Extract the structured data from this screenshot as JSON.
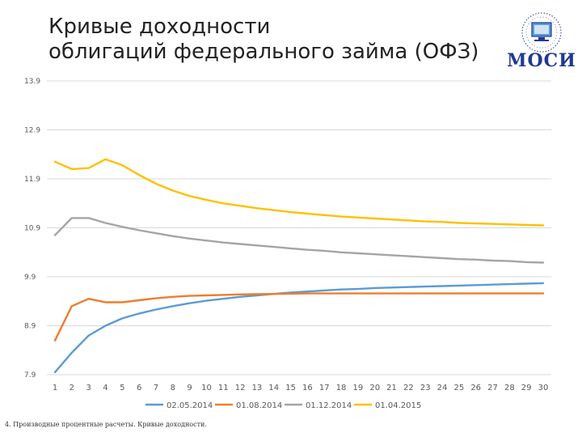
{
  "title_lines": [
    "Кривые доходности",
    "облигаций федерального займа (ОФЗ)"
  ],
  "logo": {
    "text": "МОСИ",
    "icon": "globe-computer-icon"
  },
  "footnote": "4. Производные процентные расчеты. Кривые доходности.",
  "chart_data": {
    "type": "line",
    "title": "",
    "xlabel": "",
    "ylabel": "",
    "x": [
      1,
      2,
      3,
      4,
      5,
      6,
      7,
      8,
      9,
      10,
      11,
      12,
      13,
      14,
      15,
      16,
      17,
      18,
      19,
      20,
      21,
      22,
      23,
      24,
      25,
      26,
      27,
      28,
      29,
      30
    ],
    "yticks": [
      "7.9",
      "8.9",
      "9.9",
      "10.9",
      "11.9",
      "12.9",
      "13.9"
    ],
    "ylim": [
      7.9,
      13.9
    ],
    "grid": true,
    "legend_position": "bottom",
    "series": [
      {
        "name": "02.05.2014",
        "color": "#5b9bd5",
        "values": [
          7.95,
          8.35,
          8.7,
          8.9,
          9.05,
          9.15,
          9.23,
          9.3,
          9.36,
          9.41,
          9.45,
          9.49,
          9.52,
          9.55,
          9.58,
          9.6,
          9.62,
          9.64,
          9.65,
          9.67,
          9.68,
          9.69,
          9.7,
          9.71,
          9.72,
          9.73,
          9.74,
          9.75,
          9.76,
          9.77
        ]
      },
      {
        "name": "01.08.2014",
        "color": "#ed7d31",
        "values": [
          8.6,
          9.3,
          9.45,
          9.38,
          9.38,
          9.42,
          9.46,
          9.49,
          9.51,
          9.52,
          9.53,
          9.54,
          9.545,
          9.55,
          9.555,
          9.56,
          9.56,
          9.56,
          9.56,
          9.56,
          9.56,
          9.56,
          9.56,
          9.56,
          9.56,
          9.56,
          9.56,
          9.56,
          9.56,
          9.56
        ]
      },
      {
        "name": "01.12.2014",
        "color": "#a5a5a5",
        "values": [
          10.75,
          11.1,
          11.1,
          11.0,
          10.92,
          10.85,
          10.79,
          10.73,
          10.68,
          10.64,
          10.6,
          10.57,
          10.54,
          10.51,
          10.48,
          10.45,
          10.43,
          10.4,
          10.38,
          10.36,
          10.34,
          10.32,
          10.3,
          10.28,
          10.26,
          10.25,
          10.23,
          10.22,
          10.2,
          10.19
        ]
      },
      {
        "name": "01.04.2015",
        "color": "#ffc000",
        "values": [
          12.25,
          12.1,
          12.12,
          12.3,
          12.18,
          11.98,
          11.8,
          11.66,
          11.55,
          11.47,
          11.4,
          11.35,
          11.3,
          11.26,
          11.22,
          11.19,
          11.16,
          11.13,
          11.11,
          11.09,
          11.07,
          11.05,
          11.03,
          11.02,
          11.0,
          10.99,
          10.98,
          10.97,
          10.96,
          10.95
        ]
      }
    ]
  }
}
